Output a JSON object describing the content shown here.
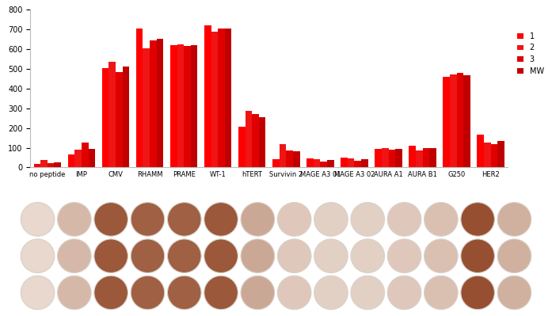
{
  "chart_data": {
    "type": "bar",
    "categories": [
      "no peptide",
      "IMP",
      "CMV",
      "RHAMM",
      "PRAME",
      "WT-1",
      "hTERT",
      "Survivin 2",
      "MAGE A3 01",
      "MAGE A3 02",
      "AURA A1",
      "AURA B1",
      "G250",
      "HER2"
    ],
    "series": [
      {
        "name": "1",
        "color": "#ff0000",
        "values": [
          18,
          65,
          505,
          705,
          620,
          718,
          205,
          40,
          45,
          50,
          95,
          110,
          458,
          165
        ]
      },
      {
        "name": "2",
        "color": "#f01414",
        "values": [
          38,
          90,
          535,
          605,
          625,
          688,
          285,
          120,
          40,
          48,
          100,
          85,
          470,
          125
        ]
      },
      {
        "name": "3",
        "color": "#e00000",
        "values": [
          20,
          128,
          485,
          645,
          615,
          705,
          272,
          85,
          28,
          32,
          92,
          100,
          480,
          118
        ]
      },
      {
        "name": "MW",
        "color": "#c00000",
        "values": [
          25,
          95,
          510,
          652,
          620,
          704,
          254,
          82,
          38,
          43,
          96,
          98,
          469,
          136
        ]
      }
    ],
    "ylim": [
      0,
      800
    ],
    "yticks": [
      0,
      100,
      200,
      300,
      400,
      500,
      600,
      700,
      800
    ],
    "grid": false,
    "legend": "right"
  }
}
